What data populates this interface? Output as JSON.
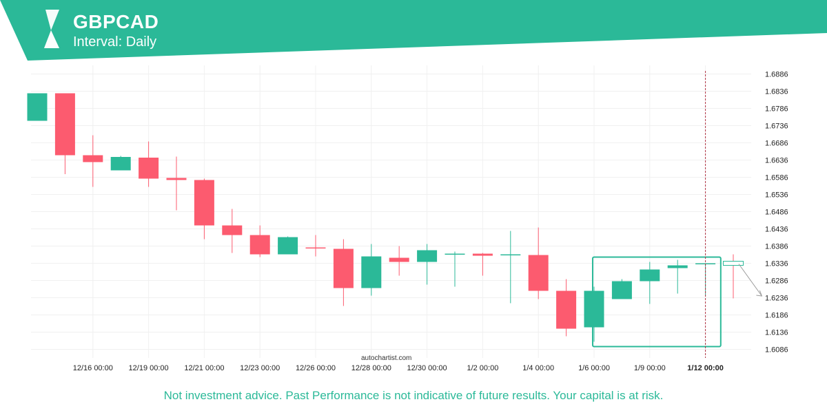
{
  "header": {
    "pair": "GBPCAD",
    "interval": "Interval: Daily"
  },
  "footer": {
    "watermark": "autochartist.com",
    "disclaimer": "Not investment advice. Past Performance is not indicative of future results. Your capital is at risk."
  },
  "colors": {
    "brand": "#2bb998",
    "up": "#2bb998",
    "down": "#fc5b6f",
    "grid": "#f0f0f0"
  },
  "icons": {
    "logo": "autochartist-logo-icon"
  },
  "chart_data": {
    "type": "candlestick",
    "ylim": [
      1.6061,
      1.6911
    ],
    "y_ticks": [
      "1.6886",
      "1.6836",
      "1.6786",
      "1.6736",
      "1.6686",
      "1.6636",
      "1.6586",
      "1.6536",
      "1.6486",
      "1.6436",
      "1.6386",
      "1.6336",
      "1.6286",
      "1.6236",
      "1.6186",
      "1.6136",
      "1.6086"
    ],
    "x_ticks": [
      "12/16 00:00",
      "12/19 00:00",
      "12/21 00:00",
      "12/23 00:00",
      "12/26 00:00",
      "12/28 00:00",
      "12/30 00:00",
      "1/2 00:00",
      "1/4 00:00",
      "1/6 00:00",
      "1/9 00:00",
      "1/12 00:00"
    ],
    "x_tick_bar_index": [
      2,
      4,
      6,
      8,
      10,
      12,
      14,
      16,
      18,
      20,
      22,
      24
    ],
    "highlight_tick": "1/12 00:00",
    "candles": [
      {
        "o": 1.675,
        "h": 1.683,
        "l": 1.675,
        "c": 1.683
      },
      {
        "o": 1.683,
        "h": 1.683,
        "l": 1.6595,
        "c": 1.665
      },
      {
        "o": 1.665,
        "h": 1.6708,
        "l": 1.6558,
        "c": 1.663
      },
      {
        "o": 1.6606,
        "h": 1.6648,
        "l": 1.6606,
        "c": 1.6645
      },
      {
        "o": 1.6643,
        "h": 1.669,
        "l": 1.6558,
        "c": 1.6582
      },
      {
        "o": 1.6584,
        "h": 1.6646,
        "l": 1.649,
        "c": 1.6578
      },
      {
        "o": 1.6578,
        "h": 1.6582,
        "l": 1.6406,
        "c": 1.6446
      },
      {
        "o": 1.6446,
        "h": 1.6494,
        "l": 1.6366,
        "c": 1.6418
      },
      {
        "o": 1.6418,
        "h": 1.6446,
        "l": 1.6354,
        "c": 1.6362
      },
      {
        "o": 1.6362,
        "h": 1.6414,
        "l": 1.6362,
        "c": 1.6412
      },
      {
        "o": 1.6382,
        "h": 1.6418,
        "l": 1.6356,
        "c": 1.638
      },
      {
        "o": 1.6378,
        "h": 1.6406,
        "l": 1.6212,
        "c": 1.6264
      },
      {
        "o": 1.6264,
        "h": 1.6392,
        "l": 1.6242,
        "c": 1.6356
      },
      {
        "o": 1.6352,
        "h": 1.6386,
        "l": 1.63,
        "c": 1.634
      },
      {
        "o": 1.634,
        "h": 1.6392,
        "l": 1.6274,
        "c": 1.6374
      },
      {
        "o": 1.6362,
        "h": 1.637,
        "l": 1.6268,
        "c": 1.6364
      },
      {
        "o": 1.6364,
        "h": 1.6366,
        "l": 1.63,
        "c": 1.6358
      },
      {
        "o": 1.6362,
        "h": 1.643,
        "l": 1.622,
        "c": 1.6362
      },
      {
        "o": 1.636,
        "h": 1.644,
        "l": 1.6232,
        "c": 1.6256
      },
      {
        "o": 1.6256,
        "h": 1.629,
        "l": 1.6124,
        "c": 1.6146
      },
      {
        "o": 1.615,
        "h": 1.6268,
        "l": 1.6108,
        "c": 1.6256
      },
      {
        "o": 1.6232,
        "h": 1.629,
        "l": 1.6232,
        "c": 1.6284
      },
      {
        "o": 1.6284,
        "h": 1.634,
        "l": 1.6218,
        "c": 1.6318
      },
      {
        "o": 1.6322,
        "h": 1.6346,
        "l": 1.6248,
        "c": 1.633
      },
      {
        "o": 1.6334,
        "h": 1.6336,
        "l": 1.624,
        "c": 1.6336
      },
      {
        "o": 1.6342,
        "h": 1.6362,
        "l": 1.6234,
        "c": 1.633
      }
    ],
    "pattern_box": {
      "from_bar": 19.95,
      "to_bar": 24.55,
      "top": 1.6354,
      "bottom": 1.6094
    },
    "forecast_arrow": {
      "from_bar": 25.0,
      "from_price": 1.6334,
      "to_bar": 26.0,
      "to_price": 1.6241
    },
    "current_time_line_bar": 24.0
  }
}
